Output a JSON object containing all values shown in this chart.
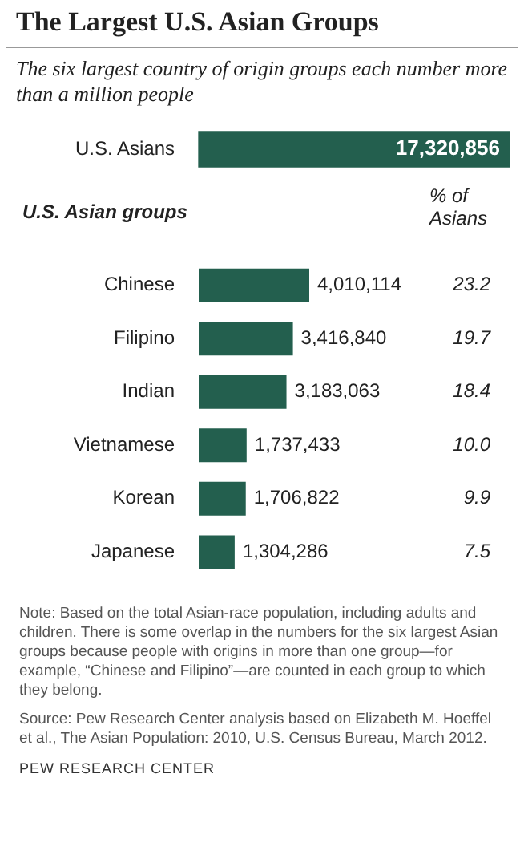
{
  "chart_data": [
    {
      "type": "bar",
      "orientation": "horizontal",
      "title": "The Largest U.S. Asian Groups",
      "subtitle": "The six largest country of origin groups each number more than a million people",
      "categories": [
        "U.S. Asians"
      ],
      "values": [
        17320856
      ],
      "value_labels": [
        "17,320,856"
      ],
      "color": "#235f4e",
      "legend": false,
      "grid": false
    },
    {
      "type": "bar",
      "orientation": "horizontal",
      "ylabel": "U.S. Asian groups",
      "categories": [
        "Chinese",
        "Filipino",
        "Indian",
        "Vietnamese",
        "Korean",
        "Japanese"
      ],
      "values": [
        4010114,
        3416840,
        3183063,
        1737433,
        1706822,
        1304286
      ],
      "value_labels": [
        "4,010,114",
        "3,416,840",
        "3,183,063",
        "1,737,433",
        "1,706,822",
        "1,304,286"
      ],
      "color": "#235f4e",
      "legend": false,
      "grid": false,
      "annotations": [
        "% of Asians",
        "23.2",
        "19.7",
        "18.4",
        "10.0",
        "9.9",
        "7.5",
        "Note: Based on the total Asian-race population, including adults and children. There is some overlap in the numbers for the six largest Asian groups because people with origins in more than one group—for example, “Chinese and Filipino”—are counted in each group to which they belong.",
        "Source: Pew Research Center analysis based on Elizabeth M. Hoeffel et al., The Asian Population: 2010, U.S. Census Bureau, March 2012.",
        "PEW RESEARCH CENTER"
      ]
    }
  ]
}
